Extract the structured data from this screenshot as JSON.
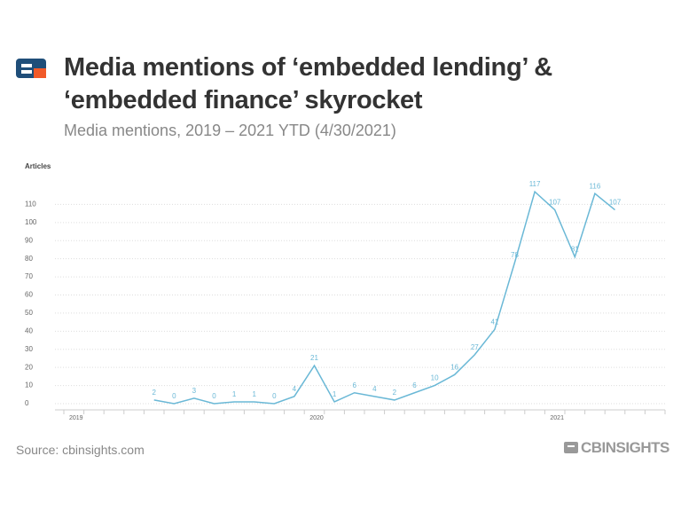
{
  "chart_data": {
    "type": "line",
    "title": "Media mentions of ‘embedded lending’ & ‘embedded finance’ skyrocket",
    "subtitle": "Media mentions, 2019 – 2021 YTD (4/30/2021)",
    "y_label": "Articles",
    "source": "Source: cbinsights.com",
    "logo": "CBINSIGHTS",
    "categories": [
      "2019",
      null,
      null,
      null,
      null,
      null,
      null,
      null,
      null,
      null,
      null,
      null,
      "2020",
      null,
      null,
      null,
      null,
      null,
      null,
      null,
      null,
      null,
      null,
      null,
      "2021",
      null,
      null,
      null,
      null,
      null
    ],
    "series": [
      {
        "name": "Articles",
        "color": "#6ab8d6",
        "values": [
          null,
          null,
          null,
          null,
          2,
          0,
          3,
          0,
          1,
          1,
          0,
          4,
          21,
          1,
          6,
          4,
          2,
          6,
          10,
          16,
          27,
          41,
          78,
          117,
          107,
          81,
          116,
          107,
          null,
          null
        ]
      }
    ],
    "ylim": [
      0,
      120
    ],
    "yticks": [
      0,
      10,
      20,
      30,
      40,
      50,
      60,
      70,
      80,
      90,
      100,
      110
    ],
    "grid": true
  }
}
